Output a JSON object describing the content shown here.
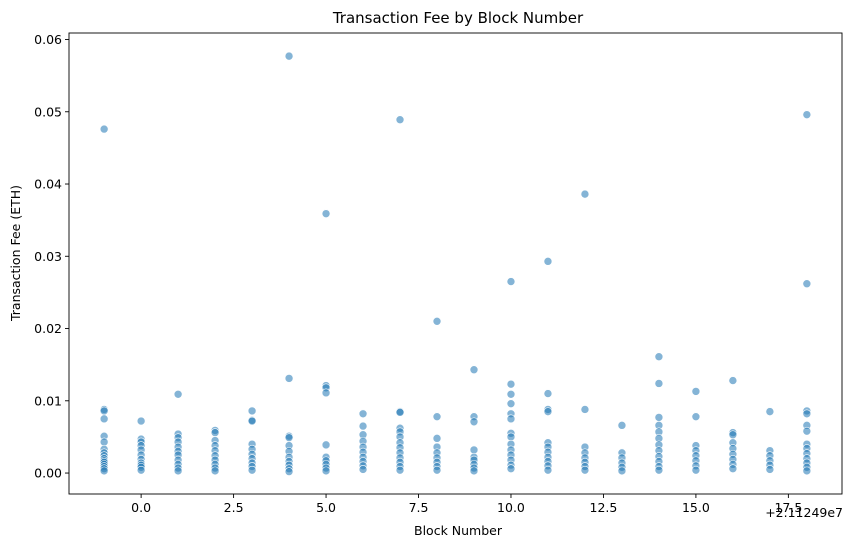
{
  "chart_data": {
    "type": "scatter",
    "title": "Transaction Fee by Block Number",
    "xlabel": "Block Number",
    "ylabel": "Transaction Fee (ETH)",
    "x_offset_label": "+2.11249e7",
    "xlim": [
      -1.95,
      18.95
    ],
    "ylim": [
      -0.0029,
      0.0609
    ],
    "x_ticks": [
      0.0,
      2.5,
      5.0,
      7.5,
      10.0,
      12.5,
      15.0,
      17.5
    ],
    "x_tick_labels": [
      "0.0",
      "2.5",
      "5.0",
      "7.5",
      "10.0",
      "12.5",
      "15.0",
      "17.5"
    ],
    "y_ticks": [
      0.0,
      0.01,
      0.02,
      0.03,
      0.04,
      0.05,
      0.06
    ],
    "y_tick_labels": [
      "0.00",
      "0.01",
      "0.02",
      "0.03",
      "0.04",
      "0.05",
      "0.06"
    ],
    "grid": false,
    "marker_color": "#1f77b4",
    "marker_alpha": 0.55,
    "series": [
      {
        "points": [
          {
            "x": -1,
            "y": 0.0476
          },
          {
            "x": -1,
            "y": 0.0088
          },
          {
            "x": -1,
            "y": 0.0086
          },
          {
            "x": -1,
            "y": 0.0075
          },
          {
            "x": -1,
            "y": 0.0051
          },
          {
            "x": -1,
            "y": 0.0043
          },
          {
            "x": -1,
            "y": 0.0033
          },
          {
            "x": -1,
            "y": 0.0028
          },
          {
            "x": -1,
            "y": 0.0024
          },
          {
            "x": -1,
            "y": 0.002
          },
          {
            "x": -1,
            "y": 0.0017
          },
          {
            "x": -1,
            "y": 0.0015
          },
          {
            "x": -1,
            "y": 0.0012
          },
          {
            "x": -1,
            "y": 0.0009
          },
          {
            "x": -1,
            "y": 0.0006
          },
          {
            "x": -1,
            "y": 0.0003
          },
          {
            "x": 0,
            "y": 0.0072
          },
          {
            "x": 0,
            "y": 0.0047
          },
          {
            "x": 0,
            "y": 0.0043
          },
          {
            "x": 0,
            "y": 0.0038
          },
          {
            "x": 0,
            "y": 0.0032
          },
          {
            "x": 0,
            "y": 0.0025
          },
          {
            "x": 0,
            "y": 0.0019
          },
          {
            "x": 0,
            "y": 0.0014
          },
          {
            "x": 0,
            "y": 0.0011
          },
          {
            "x": 0,
            "y": 0.0008
          },
          {
            "x": 0,
            "y": 0.0004
          },
          {
            "x": 1,
            "y": 0.0109
          },
          {
            "x": 1,
            "y": 0.0054
          },
          {
            "x": 1,
            "y": 0.0049
          },
          {
            "x": 1,
            "y": 0.0043
          },
          {
            "x": 1,
            "y": 0.0036
          },
          {
            "x": 1,
            "y": 0.003
          },
          {
            "x": 1,
            "y": 0.0025
          },
          {
            "x": 1,
            "y": 0.0018
          },
          {
            "x": 1,
            "y": 0.0012
          },
          {
            "x": 1,
            "y": 0.0007
          },
          {
            "x": 1,
            "y": 0.0003
          },
          {
            "x": 2,
            "y": 0.0059
          },
          {
            "x": 2,
            "y": 0.0056
          },
          {
            "x": 2,
            "y": 0.0045
          },
          {
            "x": 2,
            "y": 0.0038
          },
          {
            "x": 2,
            "y": 0.0031
          },
          {
            "x": 2,
            "y": 0.0024
          },
          {
            "x": 2,
            "y": 0.0018
          },
          {
            "x": 2,
            "y": 0.0012
          },
          {
            "x": 2,
            "y": 0.0007
          },
          {
            "x": 2,
            "y": 0.0003
          },
          {
            "x": 3,
            "y": 0.0086
          },
          {
            "x": 3,
            "y": 0.0073
          },
          {
            "x": 3,
            "y": 0.0072
          },
          {
            "x": 3,
            "y": 0.004
          },
          {
            "x": 3,
            "y": 0.0033
          },
          {
            "x": 3,
            "y": 0.0026
          },
          {
            "x": 3,
            "y": 0.002
          },
          {
            "x": 3,
            "y": 0.0014
          },
          {
            "x": 3,
            "y": 0.0009
          },
          {
            "x": 3,
            "y": 0.0004
          },
          {
            "x": 4,
            "y": 0.0577
          },
          {
            "x": 4,
            "y": 0.0131
          },
          {
            "x": 4,
            "y": 0.0051
          },
          {
            "x": 4,
            "y": 0.0049
          },
          {
            "x": 4,
            "y": 0.0038
          },
          {
            "x": 4,
            "y": 0.003
          },
          {
            "x": 4,
            "y": 0.0022
          },
          {
            "x": 4,
            "y": 0.0016
          },
          {
            "x": 4,
            "y": 0.0011
          },
          {
            "x": 4,
            "y": 0.0006
          },
          {
            "x": 4,
            "y": 0.0002
          },
          {
            "x": 5,
            "y": 0.0359
          },
          {
            "x": 5,
            "y": 0.0121
          },
          {
            "x": 5,
            "y": 0.0118
          },
          {
            "x": 5,
            "y": 0.0111
          },
          {
            "x": 5,
            "y": 0.0039
          },
          {
            "x": 5,
            "y": 0.0022
          },
          {
            "x": 5,
            "y": 0.0017
          },
          {
            "x": 5,
            "y": 0.0012
          },
          {
            "x": 5,
            "y": 0.0007
          },
          {
            "x": 5,
            "y": 0.0003
          },
          {
            "x": 6,
            "y": 0.0082
          },
          {
            "x": 6,
            "y": 0.0065
          },
          {
            "x": 6,
            "y": 0.0053
          },
          {
            "x": 6,
            "y": 0.0044
          },
          {
            "x": 6,
            "y": 0.0036
          },
          {
            "x": 6,
            "y": 0.0029
          },
          {
            "x": 6,
            "y": 0.0022
          },
          {
            "x": 6,
            "y": 0.0016
          },
          {
            "x": 6,
            "y": 0.001
          },
          {
            "x": 6,
            "y": 0.0005
          },
          {
            "x": 7,
            "y": 0.0489
          },
          {
            "x": 7,
            "y": 0.0085
          },
          {
            "x": 7,
            "y": 0.0084
          },
          {
            "x": 7,
            "y": 0.0062
          },
          {
            "x": 7,
            "y": 0.0057
          },
          {
            "x": 7,
            "y": 0.005
          },
          {
            "x": 7,
            "y": 0.0042
          },
          {
            "x": 7,
            "y": 0.0035
          },
          {
            "x": 7,
            "y": 0.0028
          },
          {
            "x": 7,
            "y": 0.0021
          },
          {
            "x": 7,
            "y": 0.0015
          },
          {
            "x": 7,
            "y": 0.0009
          },
          {
            "x": 7,
            "y": 0.0004
          },
          {
            "x": 8,
            "y": 0.021
          },
          {
            "x": 8,
            "y": 0.0078
          },
          {
            "x": 8,
            "y": 0.0048
          },
          {
            "x": 8,
            "y": 0.0036
          },
          {
            "x": 8,
            "y": 0.0028
          },
          {
            "x": 8,
            "y": 0.0021
          },
          {
            "x": 8,
            "y": 0.0015
          },
          {
            "x": 8,
            "y": 0.0009
          },
          {
            "x": 8,
            "y": 0.0004
          },
          {
            "x": 9,
            "y": 0.0143
          },
          {
            "x": 9,
            "y": 0.0078
          },
          {
            "x": 9,
            "y": 0.0071
          },
          {
            "x": 9,
            "y": 0.0032
          },
          {
            "x": 9,
            "y": 0.0022
          },
          {
            "x": 9,
            "y": 0.0018
          },
          {
            "x": 9,
            "y": 0.0012
          },
          {
            "x": 9,
            "y": 0.0007
          },
          {
            "x": 9,
            "y": 0.0003
          },
          {
            "x": 10,
            "y": 0.0265
          },
          {
            "x": 10,
            "y": 0.0123
          },
          {
            "x": 10,
            "y": 0.0109
          },
          {
            "x": 10,
            "y": 0.0096
          },
          {
            "x": 10,
            "y": 0.0082
          },
          {
            "x": 10,
            "y": 0.0075
          },
          {
            "x": 10,
            "y": 0.0055
          },
          {
            "x": 10,
            "y": 0.005
          },
          {
            "x": 10,
            "y": 0.004
          },
          {
            "x": 10,
            "y": 0.0032
          },
          {
            "x": 10,
            "y": 0.0025
          },
          {
            "x": 10,
            "y": 0.0018
          },
          {
            "x": 10,
            "y": 0.0011
          },
          {
            "x": 10,
            "y": 0.0006
          },
          {
            "x": 11,
            "y": 0.0293
          },
          {
            "x": 11,
            "y": 0.011
          },
          {
            "x": 11,
            "y": 0.0088
          },
          {
            "x": 11,
            "y": 0.0085
          },
          {
            "x": 11,
            "y": 0.0042
          },
          {
            "x": 11,
            "y": 0.0036
          },
          {
            "x": 11,
            "y": 0.0029
          },
          {
            "x": 11,
            "y": 0.0022
          },
          {
            "x": 11,
            "y": 0.0016
          },
          {
            "x": 11,
            "y": 0.001
          },
          {
            "x": 11,
            "y": 0.0004
          },
          {
            "x": 12,
            "y": 0.0386
          },
          {
            "x": 12,
            "y": 0.0088
          },
          {
            "x": 12,
            "y": 0.0036
          },
          {
            "x": 12,
            "y": 0.0028
          },
          {
            "x": 12,
            "y": 0.0021
          },
          {
            "x": 12,
            "y": 0.0015
          },
          {
            "x": 12,
            "y": 0.0009
          },
          {
            "x": 12,
            "y": 0.0004
          },
          {
            "x": 13,
            "y": 0.0066
          },
          {
            "x": 13,
            "y": 0.0028
          },
          {
            "x": 13,
            "y": 0.0021
          },
          {
            "x": 13,
            "y": 0.0014
          },
          {
            "x": 13,
            "y": 0.0008
          },
          {
            "x": 13,
            "y": 0.0003
          },
          {
            "x": 14,
            "y": 0.0161
          },
          {
            "x": 14,
            "y": 0.0124
          },
          {
            "x": 14,
            "y": 0.0077
          },
          {
            "x": 14,
            "y": 0.0066
          },
          {
            "x": 14,
            "y": 0.0057
          },
          {
            "x": 14,
            "y": 0.0048
          },
          {
            "x": 14,
            "y": 0.0039
          },
          {
            "x": 14,
            "y": 0.0031
          },
          {
            "x": 14,
            "y": 0.0023
          },
          {
            "x": 14,
            "y": 0.0016
          },
          {
            "x": 14,
            "y": 0.0009
          },
          {
            "x": 14,
            "y": 0.0004
          },
          {
            "x": 15,
            "y": 0.0113
          },
          {
            "x": 15,
            "y": 0.0078
          },
          {
            "x": 15,
            "y": 0.0038
          },
          {
            "x": 15,
            "y": 0.0031
          },
          {
            "x": 15,
            "y": 0.0024
          },
          {
            "x": 15,
            "y": 0.0017
          },
          {
            "x": 15,
            "y": 0.001
          },
          {
            "x": 15,
            "y": 0.0004
          },
          {
            "x": 16,
            "y": 0.0128
          },
          {
            "x": 16,
            "y": 0.0056
          },
          {
            "x": 16,
            "y": 0.0053
          },
          {
            "x": 16,
            "y": 0.0042
          },
          {
            "x": 16,
            "y": 0.0034
          },
          {
            "x": 16,
            "y": 0.0026
          },
          {
            "x": 16,
            "y": 0.0019
          },
          {
            "x": 16,
            "y": 0.0012
          },
          {
            "x": 16,
            "y": 0.0006
          },
          {
            "x": 17,
            "y": 0.0085
          },
          {
            "x": 17,
            "y": 0.0031
          },
          {
            "x": 17,
            "y": 0.0024
          },
          {
            "x": 17,
            "y": 0.0017
          },
          {
            "x": 17,
            "y": 0.0011
          },
          {
            "x": 17,
            "y": 0.0005
          },
          {
            "x": 18,
            "y": 0.0496
          },
          {
            "x": 18,
            "y": 0.0262
          },
          {
            "x": 18,
            "y": 0.0086
          },
          {
            "x": 18,
            "y": 0.0082
          },
          {
            "x": 18,
            "y": 0.0066
          },
          {
            "x": 18,
            "y": 0.0058
          },
          {
            "x": 18,
            "y": 0.004
          },
          {
            "x": 18,
            "y": 0.0034
          },
          {
            "x": 18,
            "y": 0.0027
          },
          {
            "x": 18,
            "y": 0.002
          },
          {
            "x": 18,
            "y": 0.0014
          },
          {
            "x": 18,
            "y": 0.0008
          },
          {
            "x": 18,
            "y": 0.0003
          }
        ]
      }
    ]
  }
}
